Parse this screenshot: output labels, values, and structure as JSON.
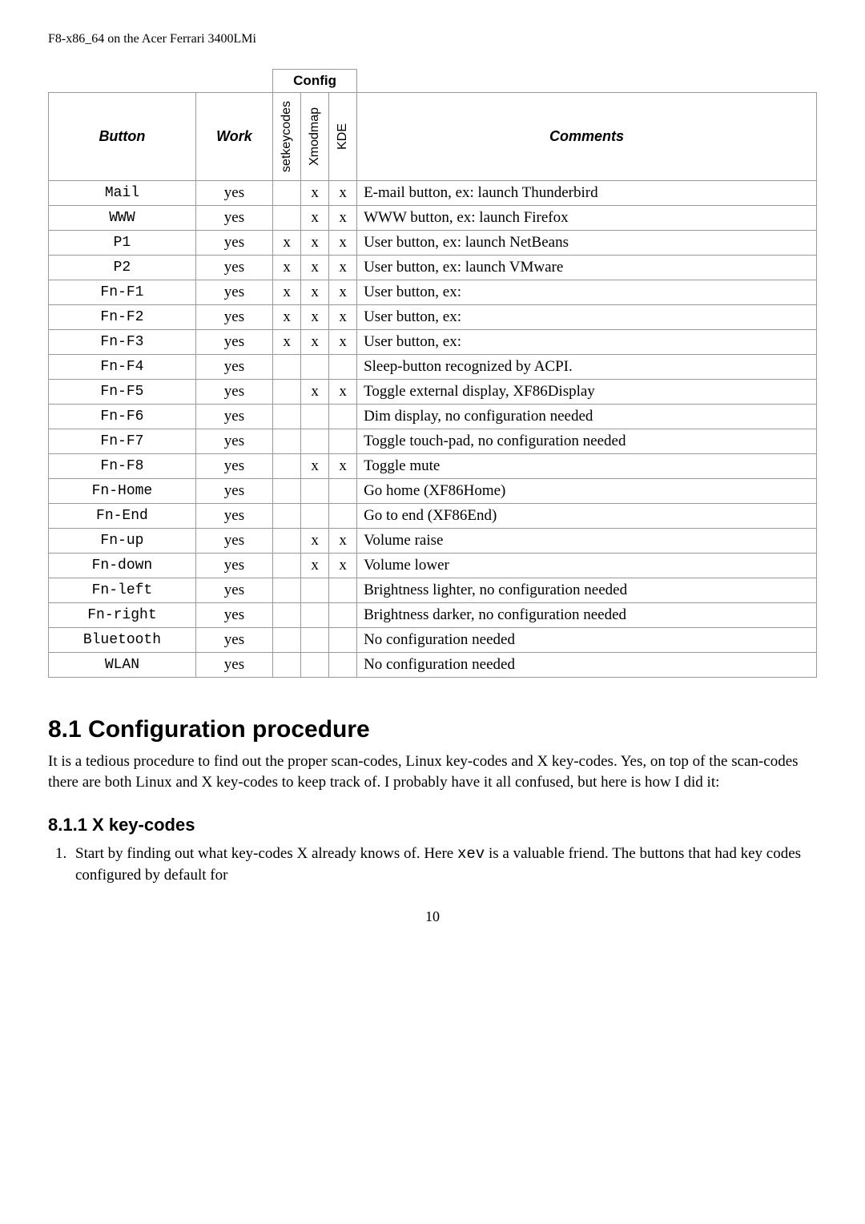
{
  "page_header": "F8-x86_64 on the Acer Ferrari 3400LMi",
  "table": {
    "headers": {
      "config": "Config",
      "button": "Button",
      "work": "Work",
      "col_set": "setkeycodes",
      "col_xmod": "Xmodmap",
      "col_kde": "KDE",
      "comments": "Comments"
    },
    "rows": [
      {
        "button": "Mail",
        "work": "yes",
        "set": "",
        "xmod": "x",
        "kde": "x",
        "comment": "E-mail button, ex: launch Thunderbird"
      },
      {
        "button": "WWW",
        "work": "yes",
        "set": "",
        "xmod": "x",
        "kde": "x",
        "comment": "WWW button, ex: launch Firefox"
      },
      {
        "button": "P1",
        "work": "yes",
        "set": "x",
        "xmod": "x",
        "kde": "x",
        "comment": "User button, ex: launch NetBeans"
      },
      {
        "button": "P2",
        "work": "yes",
        "set": "x",
        "xmod": "x",
        "kde": "x",
        "comment": "User button, ex: launch VMware"
      },
      {
        "button": "Fn-F1",
        "work": "yes",
        "set": "x",
        "xmod": "x",
        "kde": "x",
        "comment": "User button, ex:"
      },
      {
        "button": "Fn-F2",
        "work": "yes",
        "set": "x",
        "xmod": "x",
        "kde": "x",
        "comment": "User button, ex:"
      },
      {
        "button": "Fn-F3",
        "work": "yes",
        "set": "x",
        "xmod": "x",
        "kde": "x",
        "comment": "User button, ex:"
      },
      {
        "button": "Fn-F4",
        "work": "yes",
        "set": "",
        "xmod": "",
        "kde": "",
        "comment": "Sleep-button recognized by ACPI."
      },
      {
        "button": "Fn-F5",
        "work": "yes",
        "set": "",
        "xmod": "x",
        "kde": "x",
        "comment": "Toggle external display, XF86Display"
      },
      {
        "button": "Fn-F6",
        "work": "yes",
        "set": "",
        "xmod": "",
        "kde": "",
        "comment": "Dim display, no configuration needed"
      },
      {
        "button": "Fn-F7",
        "work": "yes",
        "set": "",
        "xmod": "",
        "kde": "",
        "comment": "Toggle touch-pad, no configuration needed"
      },
      {
        "button": "Fn-F8",
        "work": "yes",
        "set": "",
        "xmod": "x",
        "kde": "x",
        "comment": "Toggle mute"
      },
      {
        "button": "Fn-Home",
        "work": "yes",
        "set": "",
        "xmod": "",
        "kde": "",
        "comment": "Go home (XF86Home)"
      },
      {
        "button": "Fn-End",
        "work": "yes",
        "set": "",
        "xmod": "",
        "kde": "",
        "comment": "Go to end (XF86End)"
      },
      {
        "button": "Fn-up",
        "work": "yes",
        "set": "",
        "xmod": "x",
        "kde": "x",
        "comment": "Volume raise"
      },
      {
        "button": "Fn-down",
        "work": "yes",
        "set": "",
        "xmod": "x",
        "kde": "x",
        "comment": "Volume lower"
      },
      {
        "button": "Fn-left",
        "work": "yes",
        "set": "",
        "xmod": "",
        "kde": "",
        "comment": "Brightness lighter, no configuration needed"
      },
      {
        "button": "Fn-right",
        "work": "yes",
        "set": "",
        "xmod": "",
        "kde": "",
        "comment": "Brightness darker, no configuration needed"
      },
      {
        "button": "Bluetooth",
        "work": "yes",
        "set": "",
        "xmod": "",
        "kde": "",
        "comment": "No configuration needed"
      },
      {
        "button": "WLAN",
        "work": "yes",
        "set": "",
        "xmod": "",
        "kde": "",
        "comment": "No configuration needed"
      }
    ]
  },
  "section": {
    "heading": "8.1 Configuration procedure",
    "para": "It is a tedious procedure to find out the proper scan-codes, Linux key-codes and X key-codes. Yes, on top of the scan-codes there are both Linux and X key-codes to keep track of. I probably have it all confused, but here is how I did it:"
  },
  "subsection": {
    "heading": "8.1.1 X key-codes",
    "item_pre": "Start by finding out what key-codes X already knows of. Here ",
    "item_code": "xev",
    "item_post": " is a valuable friend. The buttons that had key codes configured by default for"
  },
  "page_number": "10"
}
